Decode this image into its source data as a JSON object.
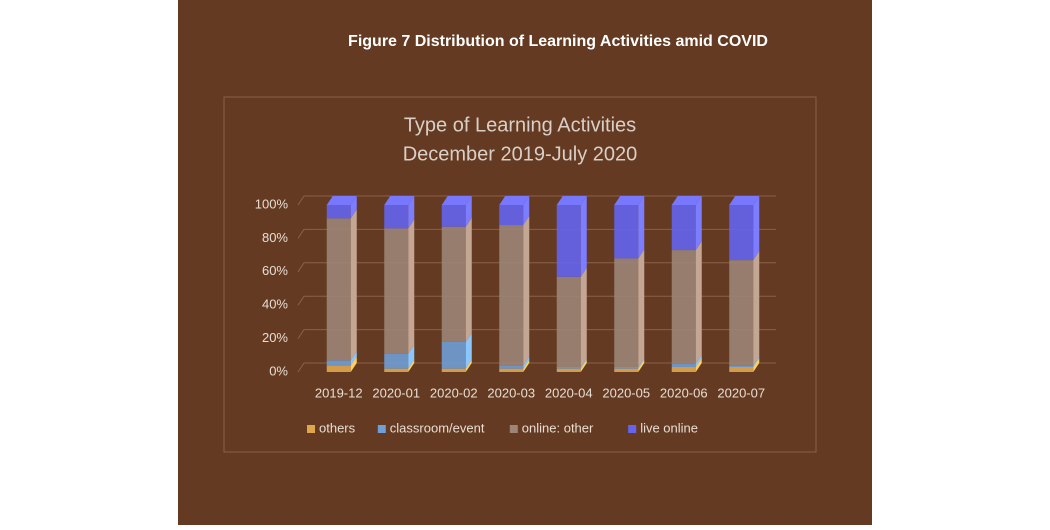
{
  "figure_title": "Figure 7 Distribution of Learning Activities amid COVID",
  "chart_data": {
    "type": "stacked-bar-3d",
    "title": "Type of Learning Activities",
    "subtitle": "December 2019-July 2020",
    "categories": [
      "2019-12",
      "2020-01",
      "2020-02",
      "2020-03",
      "2020-04",
      "2020-05",
      "2020-06",
      "2020-07"
    ],
    "series": [
      {
        "name": "others",
        "color": "#e0a64c",
        "values": [
          4,
          2,
          2,
          2,
          2,
          2,
          3,
          3
        ]
      },
      {
        "name": "classroom/event",
        "color": "#6f9fd6",
        "values": [
          3,
          9,
          16,
          2,
          1,
          1,
          2,
          1
        ]
      },
      {
        "name": "online: other",
        "color": "#9c8576",
        "values": [
          85,
          75,
          69,
          84,
          54,
          65,
          68,
          63
        ]
      },
      {
        "name": "live online",
        "color": "#6464f0",
        "values": [
          8,
          14,
          13,
          12,
          43,
          32,
          27,
          33
        ]
      }
    ],
    "ylim": [
      0,
      100
    ],
    "yticks": [
      {
        "value": 0,
        "label": "0%"
      },
      {
        "value": 20,
        "label": "20%"
      },
      {
        "value": 40,
        "label": "40%"
      },
      {
        "value": 60,
        "label": "60%"
      },
      {
        "value": 80,
        "label": "80%"
      },
      {
        "value": 100,
        "label": "100%"
      }
    ],
    "grid": true,
    "legend": "bottom"
  }
}
